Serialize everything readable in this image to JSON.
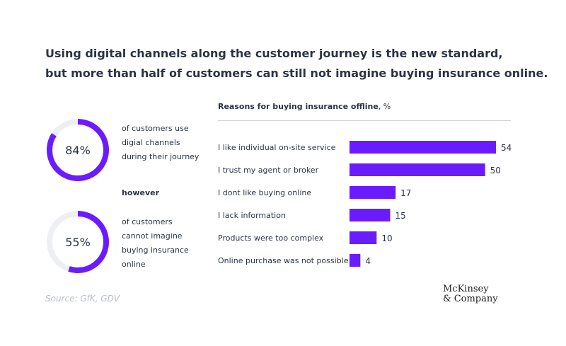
{
  "title": {
    "line1": "Using digital channels along the customer journey is the new standard,",
    "line2": "but more than half of customers can still not imagine buying insurance online."
  },
  "stats": [
    {
      "percent": 84,
      "label": "84%",
      "description": "of customers use digial channels during their journey"
    },
    {
      "percent": 55,
      "label": "55%",
      "description": "of customers cannot imagine buying insurance online"
    }
  ],
  "however_label": "however",
  "source": "Source: GfK, GDV",
  "logo": {
    "line1": "McKinsey",
    "line2": "& Company"
  },
  "colors": {
    "accent": "#6a1bff",
    "track": "#eeeff3",
    "text": "#2b3444",
    "muted": "#b8bec6"
  },
  "chart_data": {
    "type": "bar",
    "orientation": "horizontal",
    "title": "Reasons for buying insurance offline",
    "unit_label": ", %",
    "categories": [
      "I like individual on-site service",
      "I trust my agent or broker",
      "I dont like buying online",
      "I lack information",
      "Products were too complex",
      "Online purchase was not possible"
    ],
    "values": [
      54,
      50,
      17,
      15,
      10,
      4
    ],
    "value_labels": [
      "54",
      "50",
      "17",
      "15",
      "10",
      "4"
    ],
    "xlim": [
      0,
      54
    ],
    "grid": false,
    "legend": "none"
  }
}
